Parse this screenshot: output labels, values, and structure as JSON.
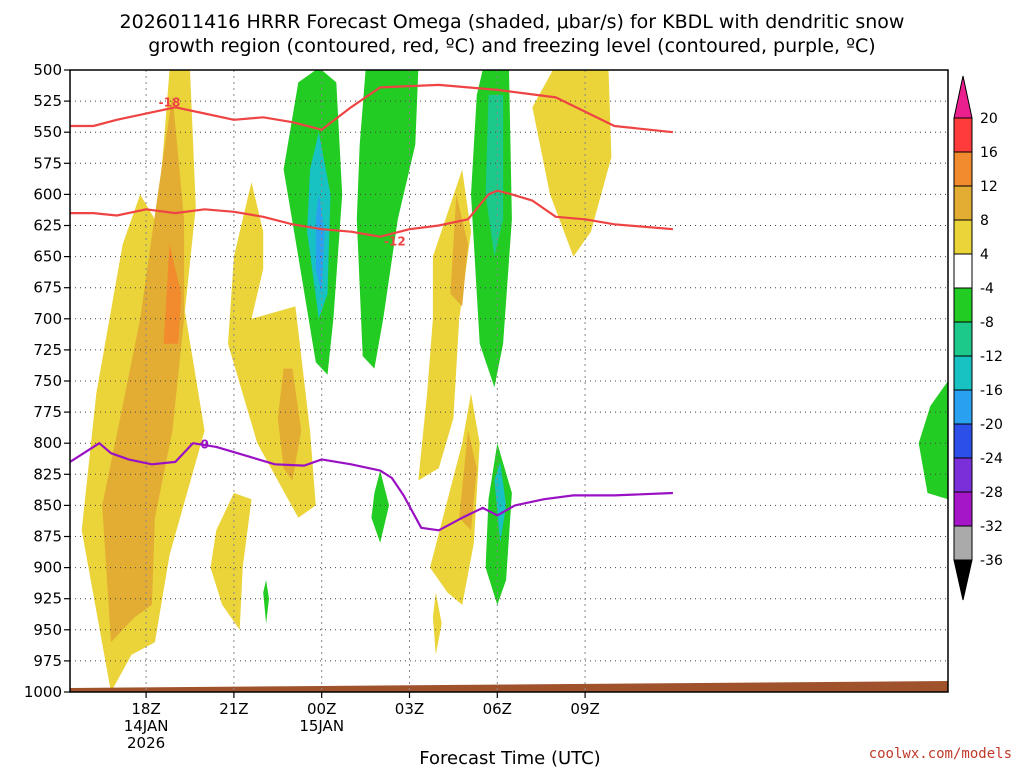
{
  "chart_data": {
    "type": "heatmap",
    "title_line1": "2026011416 HRRR Forecast Omega (shaded, μbar/s) for KBDL with dendritic snow",
    "title_line2": "growth region (contoured, red, ºC) and freezing level (contoured, purple, ºC)",
    "xlabel": "Forecast Time (UTC)",
    "credit": "coolwx.com/models",
    "time_range_hours": [
      -2.6,
      27.4
    ],
    "pressure_range_hpa": [
      500,
      1000
    ],
    "pressure_ticks": [
      500,
      525,
      550,
      575,
      600,
      625,
      650,
      675,
      700,
      725,
      750,
      775,
      800,
      825,
      850,
      875,
      900,
      925,
      950,
      975,
      1000
    ],
    "x_ticks": [
      {
        "h": 0,
        "label": "18Z",
        "sub1": "14JAN",
        "sub2": "2026"
      },
      {
        "h": 3,
        "label": "21Z",
        "sub1": "",
        "sub2": ""
      },
      {
        "h": 6,
        "label": "00Z",
        "sub1": "15JAN",
        "sub2": ""
      },
      {
        "h": 9,
        "label": "03Z",
        "sub1": "",
        "sub2": ""
      },
      {
        "h": 12,
        "label": "06Z",
        "sub1": "",
        "sub2": ""
      },
      {
        "h": 15,
        "label": "09Z",
        "sub1": "",
        "sub2": ""
      }
    ],
    "colorbar": {
      "labels": [
        "20",
        "16",
        "12",
        "8",
        "4",
        "-4",
        "-8",
        "-12",
        "-16",
        "-20",
        "-24",
        "-28",
        "-32",
        "-36"
      ],
      "colors": [
        "#ff3b3b",
        "#f28a2e",
        "#e2ad32",
        "#ebd33a",
        "#ffffff",
        "#22cc22",
        "#1dc98a",
        "#19c2c2",
        "#2aa0f0",
        "#2b4fe8",
        "#7a2fd8",
        "#a616c9",
        "#aaaaaa"
      ],
      "top_arrow_color": "#ec1f8f",
      "bottom_arrow_color": "#000000"
    },
    "omega_features": [
      {
        "name": "positive-plume-early",
        "level": 4,
        "points": [
          [
            -1.2,
            1000
          ],
          [
            -2.2,
            870
          ],
          [
            -1.7,
            760
          ],
          [
            -0.8,
            640
          ],
          [
            -0.2,
            600
          ],
          [
            0.8,
            640
          ],
          [
            1.3,
            690
          ],
          [
            2,
            790
          ],
          [
            0.8,
            890
          ],
          [
            0.3,
            960
          ],
          [
            -0.5,
            970
          ]
        ]
      },
      {
        "name": "positive-plume-top",
        "level": 4,
        "points": [
          [
            0.3,
            640
          ],
          [
            0.6,
            560
          ],
          [
            0.8,
            500
          ],
          [
            1.5,
            500
          ],
          [
            1.7,
            610
          ],
          [
            1.3,
            700
          ],
          [
            0.8,
            700
          ]
        ]
      },
      {
        "name": "positive-8-core",
        "level": 8,
        "points": [
          [
            -1.2,
            960
          ],
          [
            -1.5,
            850
          ],
          [
            -0.8,
            770
          ],
          [
            -0.2,
            700
          ],
          [
            0.4,
            600
          ],
          [
            0.9,
            520
          ],
          [
            1.3,
            620
          ],
          [
            1.3,
            700
          ],
          [
            0.9,
            790
          ],
          [
            0.3,
            860
          ],
          [
            0.2,
            930
          ],
          [
            -0.4,
            940
          ]
        ]
      },
      {
        "name": "positive-12-core",
        "level": 12,
        "points": [
          [
            0.6,
            720
          ],
          [
            0.8,
            640
          ],
          [
            1.2,
            680
          ],
          [
            1.1,
            720
          ]
        ]
      },
      {
        "name": "positive-mid",
        "level": 4,
        "points": [
          [
            3,
            650
          ],
          [
            3.6,
            590
          ],
          [
            4,
            630
          ],
          [
            4,
            660
          ],
          [
            3.6,
            700
          ],
          [
            5.1,
            690
          ],
          [
            5.6,
            790
          ],
          [
            5.8,
            850
          ],
          [
            5.2,
            860
          ],
          [
            3.8,
            800
          ],
          [
            2.8,
            720
          ]
        ]
      },
      {
        "name": "positive-8-mid",
        "level": 8,
        "points": [
          [
            4.5,
            780
          ],
          [
            4.7,
            740
          ],
          [
            5,
            740
          ],
          [
            5.3,
            790
          ],
          [
            5,
            830
          ],
          [
            4.7,
            820
          ]
        ]
      },
      {
        "name": "positive-low-21z",
        "level": 4,
        "points": [
          [
            2.4,
            870
          ],
          [
            3,
            840
          ],
          [
            3.6,
            845
          ],
          [
            3.3,
            900
          ],
          [
            3.2,
            950
          ],
          [
            2.6,
            930
          ],
          [
            2.2,
            900
          ]
        ]
      },
      {
        "name": "positive-03z",
        "level": 4,
        "points": [
          [
            9.3,
            830
          ],
          [
            9.6,
            760
          ],
          [
            9.8,
            700
          ],
          [
            9.8,
            650
          ],
          [
            10.8,
            580
          ],
          [
            11.1,
            630
          ],
          [
            10.7,
            700
          ],
          [
            10.5,
            780
          ],
          [
            10.0,
            820
          ]
        ]
      },
      {
        "name": "positive-8-03z",
        "level": 8,
        "points": [
          [
            10.4,
            680
          ],
          [
            10.6,
            600
          ],
          [
            11,
            640
          ],
          [
            10.8,
            690
          ]
        ]
      },
      {
        "name": "positive-05z",
        "level": 4,
        "points": [
          [
            9.7,
            900
          ],
          [
            10.8,
            800
          ],
          [
            11.1,
            760
          ],
          [
            11.4,
            800
          ],
          [
            11.2,
            880
          ],
          [
            10.8,
            930
          ],
          [
            10.3,
            920
          ]
        ]
      },
      {
        "name": "positive-8-05z",
        "level": 8,
        "points": [
          [
            10.7,
            860
          ],
          [
            11.0,
            790
          ],
          [
            11.3,
            820
          ],
          [
            11.1,
            870
          ]
        ]
      },
      {
        "name": "positive-950",
        "level": 4,
        "points": [
          [
            9.8,
            940
          ],
          [
            9.9,
            920
          ],
          [
            10.1,
            945
          ],
          [
            9.9,
            970
          ]
        ]
      },
      {
        "name": "positive-upper-right",
        "level": 4,
        "points": [
          [
            13.2,
            530
          ],
          [
            13.9,
            500
          ],
          [
            15.8,
            500
          ],
          [
            15.9,
            570
          ],
          [
            15.2,
            630
          ],
          [
            14.6,
            650
          ],
          [
            13.8,
            600
          ]
        ]
      },
      {
        "name": "negative-00z",
        "level": -4,
        "points": [
          [
            6.0,
            500
          ],
          [
            6.5,
            510
          ],
          [
            6.7,
            600
          ],
          [
            6.4,
            700
          ],
          [
            6.2,
            745
          ],
          [
            5.8,
            735
          ],
          [
            5.2,
            650
          ],
          [
            4.7,
            580
          ],
          [
            5.2,
            510
          ],
          [
            5.8,
            500
          ]
        ]
      },
      {
        "name": "negative-12-00z",
        "level": -12,
        "points": [
          [
            5.9,
            550
          ],
          [
            6.3,
            600
          ],
          [
            6.2,
            680
          ],
          [
            5.9,
            700
          ],
          [
            5.5,
            630
          ],
          [
            5.6,
            580
          ]
        ]
      },
      {
        "name": "negative-16-00z",
        "level": -16,
        "points": [
          [
            5.9,
            600
          ],
          [
            6.1,
            630
          ],
          [
            6.0,
            680
          ],
          [
            5.8,
            660
          ],
          [
            5.8,
            620
          ]
        ]
      },
      {
        "name": "negative-02z",
        "level": -4,
        "points": [
          [
            7.5,
            500
          ],
          [
            9.3,
            500
          ],
          [
            9.2,
            560
          ],
          [
            8.6,
            620
          ],
          [
            8.1,
            700
          ],
          [
            7.8,
            740
          ],
          [
            7.4,
            730
          ],
          [
            7.2,
            620
          ],
          [
            7.3,
            560
          ]
        ]
      },
      {
        "name": "negative-06z",
        "level": -4,
        "points": [
          [
            11.5,
            500
          ],
          [
            12.4,
            500
          ],
          [
            12.5,
            620
          ],
          [
            12.2,
            720
          ],
          [
            11.9,
            755
          ],
          [
            11.4,
            720
          ],
          [
            11.1,
            600
          ],
          [
            11.3,
            520
          ]
        ]
      },
      {
        "name": "negative-8-06z",
        "level": -8,
        "points": [
          [
            11.7,
            520
          ],
          [
            12.2,
            520
          ],
          [
            12.2,
            620
          ],
          [
            11.9,
            650
          ],
          [
            11.6,
            600
          ]
        ]
      },
      {
        "name": "negative-850a",
        "level": -4,
        "points": [
          [
            7.8,
            840
          ],
          [
            8.0,
            822
          ],
          [
            8.3,
            850
          ],
          [
            8.0,
            880
          ],
          [
            7.7,
            860
          ]
        ]
      },
      {
        "name": "negative-850b",
        "level": -4,
        "points": [
          [
            11.7,
            845
          ],
          [
            12.0,
            800
          ],
          [
            12.5,
            840
          ],
          [
            12.3,
            910
          ],
          [
            12.0,
            930
          ],
          [
            11.6,
            900
          ]
        ]
      },
      {
        "name": "negative-12-850",
        "level": -12,
        "points": [
          [
            11.9,
            830
          ],
          [
            12.1,
            815
          ],
          [
            12.3,
            850
          ],
          [
            12.1,
            880
          ]
        ]
      },
      {
        "name": "negative-925",
        "level": -4,
        "points": [
          [
            4.0,
            920
          ],
          [
            4.1,
            910
          ],
          [
            4.2,
            925
          ],
          [
            4.1,
            945
          ]
        ]
      },
      {
        "name": "negative-right",
        "level": -4,
        "points": [
          [
            27.4,
            750
          ],
          [
            26.8,
            770
          ],
          [
            26.4,
            800
          ],
          [
            26.7,
            840
          ],
          [
            27.4,
            845
          ]
        ]
      }
    ],
    "contours": [
      {
        "name": "dgz-top",
        "color": "#ee4444",
        "label": "-18",
        "label_at": [
          0.8,
          526
        ],
        "points": [
          [
            -2.6,
            545
          ],
          [
            -1.8,
            545
          ],
          [
            -1,
            540
          ],
          [
            1,
            530
          ],
          [
            2,
            535
          ],
          [
            3,
            540
          ],
          [
            4,
            538
          ],
          [
            5,
            542
          ],
          [
            6,
            548
          ],
          [
            7,
            530
          ],
          [
            8,
            514
          ],
          [
            10,
            512
          ],
          [
            12,
            516
          ],
          [
            14,
            522
          ],
          [
            16,
            545
          ],
          [
            18,
            550
          ]
        ]
      },
      {
        "name": "dgz-bottom",
        "color": "#ee4444",
        "label": "-12",
        "label_at": [
          8.5,
          638
        ],
        "points": [
          [
            -2.6,
            615
          ],
          [
            -1.8,
            615
          ],
          [
            -1,
            617
          ],
          [
            0,
            612
          ],
          [
            1,
            615
          ],
          [
            2,
            612
          ],
          [
            3,
            614
          ],
          [
            4,
            618
          ],
          [
            5,
            624
          ],
          [
            6,
            628
          ],
          [
            7,
            630
          ],
          [
            8,
            634
          ],
          [
            9,
            628
          ],
          [
            10,
            625
          ],
          [
            11,
            620
          ],
          [
            11.7,
            600
          ],
          [
            12,
            597
          ],
          [
            12.5,
            600
          ],
          [
            13.2,
            605
          ],
          [
            14,
            618
          ],
          [
            15,
            620
          ],
          [
            16,
            624
          ],
          [
            18,
            628
          ]
        ]
      },
      {
        "name": "freezing-level",
        "color": "#9a11c4",
        "label": "0",
        "label_at": [
          2,
          801
        ],
        "points": [
          [
            -2.6,
            815
          ],
          [
            -1.6,
            800
          ],
          [
            -1.2,
            808
          ],
          [
            -0.6,
            813
          ],
          [
            0.2,
            817
          ],
          [
            1,
            815
          ],
          [
            1.6,
            800
          ],
          [
            2.4,
            803
          ],
          [
            3.4,
            810
          ],
          [
            4.4,
            817
          ],
          [
            5.4,
            818
          ],
          [
            6,
            813
          ],
          [
            7,
            817
          ],
          [
            8,
            822
          ],
          [
            8.4,
            828
          ],
          [
            8.8,
            842
          ],
          [
            9.4,
            868
          ],
          [
            10,
            870
          ],
          [
            10.8,
            860
          ],
          [
            11.5,
            852
          ],
          [
            12,
            858
          ],
          [
            12.6,
            850
          ],
          [
            13.6,
            845
          ],
          [
            14.6,
            842
          ],
          [
            16,
            842
          ],
          [
            18,
            840
          ]
        ]
      }
    ]
  }
}
